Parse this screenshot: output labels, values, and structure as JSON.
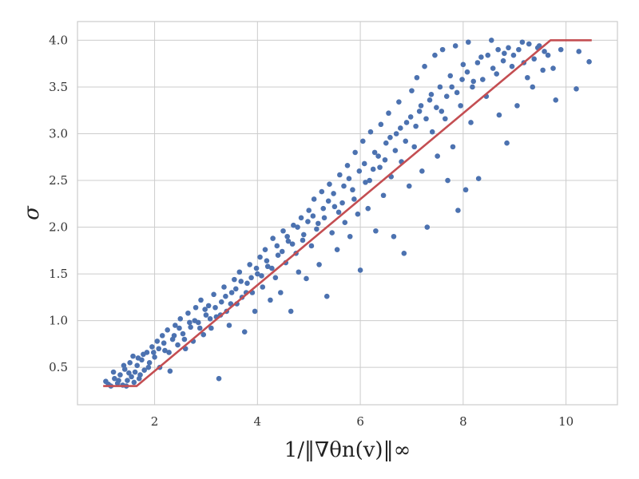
{
  "chart_data": {
    "type": "scatter",
    "xlabel": "1/‖∇θn(v)‖∞",
    "ylabel": "σ",
    "xlim": [
      0.5,
      11.0
    ],
    "ylim": [
      0.1,
      4.2
    ],
    "x_ticks": [
      2,
      4,
      6,
      8,
      10
    ],
    "y_ticks": [
      0.5,
      1.0,
      1.5,
      2.0,
      2.5,
      3.0,
      3.5,
      4.0
    ],
    "x_tick_labels": [
      "2",
      "4",
      "6",
      "8",
      "10"
    ],
    "y_tick_labels": [
      "0.5",
      "1.0",
      "1.5",
      "2.0",
      "2.5",
      "3.0",
      "3.5",
      "4.0"
    ],
    "grid": true,
    "colors": {
      "points": "#4c72b0",
      "fit": "#c44e52",
      "grid": "#cccccc",
      "frame": "#cccccc"
    },
    "series": [
      {
        "kind": "scatter",
        "points": [
          [
            1.05,
            0.35
          ],
          [
            1.15,
            0.3
          ],
          [
            1.22,
            0.38
          ],
          [
            1.28,
            0.33
          ],
          [
            1.33,
            0.42
          ],
          [
            1.38,
            0.31
          ],
          [
            1.42,
            0.48
          ],
          [
            1.47,
            0.36
          ],
          [
            1.52,
            0.55
          ],
          [
            1.55,
            0.4
          ],
          [
            1.58,
            0.62
          ],
          [
            1.62,
            0.45
          ],
          [
            1.66,
            0.52
          ],
          [
            1.7,
            0.38
          ],
          [
            1.75,
            0.58
          ],
          [
            1.8,
            0.47
          ],
          [
            1.85,
            0.66
          ],
          [
            1.9,
            0.55
          ],
          [
            1.95,
            0.72
          ],
          [
            2.0,
            0.61
          ],
          [
            2.05,
            0.78
          ],
          [
            2.1,
            0.5
          ],
          [
            2.15,
            0.84
          ],
          [
            2.2,
            0.68
          ],
          [
            2.25,
            0.9
          ],
          [
            2.3,
            0.46
          ],
          [
            2.35,
            0.8
          ],
          [
            2.4,
            0.95
          ],
          [
            2.45,
            0.74
          ],
          [
            2.5,
            1.02
          ],
          [
            2.55,
            0.86
          ],
          [
            2.6,
            0.7
          ],
          [
            2.65,
            1.08
          ],
          [
            2.7,
            0.93
          ],
          [
            2.75,
            0.78
          ],
          [
            2.8,
            1.14
          ],
          [
            2.85,
            0.98
          ],
          [
            2.9,
            1.22
          ],
          [
            2.95,
            0.85
          ],
          [
            3.0,
            1.06
          ],
          [
            3.05,
            1.16
          ],
          [
            3.1,
            0.92
          ],
          [
            3.15,
            1.28
          ],
          [
            3.2,
            1.04
          ],
          [
            3.25,
            0.38
          ],
          [
            3.3,
            1.2
          ],
          [
            3.35,
            1.36
          ],
          [
            3.4,
            1.1
          ],
          [
            3.45,
            0.95
          ],
          [
            3.5,
            1.3
          ],
          [
            3.55,
            1.44
          ],
          [
            3.6,
            1.18
          ],
          [
            3.65,
            1.52
          ],
          [
            3.7,
            1.25
          ],
          [
            3.75,
            0.88
          ],
          [
            3.8,
            1.4
          ],
          [
            3.85,
            1.6
          ],
          [
            3.9,
            1.3
          ],
          [
            3.95,
            1.1
          ],
          [
            4.0,
            1.5
          ],
          [
            4.05,
            1.68
          ],
          [
            4.1,
            1.36
          ],
          [
            4.15,
            1.76
          ],
          [
            4.2,
            1.58
          ],
          [
            4.25,
            1.22
          ],
          [
            4.3,
            1.88
          ],
          [
            4.35,
            1.46
          ],
          [
            4.4,
            1.7
          ],
          [
            4.45,
            1.3
          ],
          [
            4.5,
            1.96
          ],
          [
            4.55,
            1.62
          ],
          [
            4.6,
            1.85
          ],
          [
            4.65,
            1.1
          ],
          [
            4.7,
            2.02
          ],
          [
            4.75,
            1.72
          ],
          [
            4.8,
            1.52
          ],
          [
            4.85,
            2.1
          ],
          [
            4.9,
            1.92
          ],
          [
            4.95,
            1.45
          ],
          [
            5.0,
            2.18
          ],
          [
            5.05,
            1.8
          ],
          [
            5.1,
            2.3
          ],
          [
            5.15,
            1.98
          ],
          [
            5.2,
            1.6
          ],
          [
            5.25,
            2.38
          ],
          [
            5.3,
            2.1
          ],
          [
            5.35,
            1.26
          ],
          [
            5.4,
            2.46
          ],
          [
            5.45,
            1.94
          ],
          [
            5.5,
            2.22
          ],
          [
            5.55,
            1.76
          ],
          [
            5.6,
            2.56
          ],
          [
            5.65,
            2.26
          ],
          [
            5.7,
            2.05
          ],
          [
            5.75,
            2.66
          ],
          [
            5.8,
            1.9
          ],
          [
            5.85,
            2.4
          ],
          [
            5.9,
            2.8
          ],
          [
            5.95,
            2.14
          ],
          [
            6.0,
            1.54
          ],
          [
            6.05,
            2.92
          ],
          [
            6.1,
            2.48
          ],
          [
            6.15,
            2.2
          ],
          [
            6.2,
            3.02
          ],
          [
            6.25,
            2.62
          ],
          [
            6.3,
            1.96
          ],
          [
            6.35,
            2.76
          ],
          [
            6.4,
            3.1
          ],
          [
            6.45,
            2.34
          ],
          [
            6.5,
            2.9
          ],
          [
            6.55,
            3.22
          ],
          [
            6.6,
            2.54
          ],
          [
            6.65,
            1.9
          ],
          [
            6.7,
            3.0
          ],
          [
            6.75,
            3.34
          ],
          [
            6.8,
            2.7
          ],
          [
            6.85,
            1.72
          ],
          [
            6.9,
            3.12
          ],
          [
            6.95,
            2.44
          ],
          [
            7.0,
            3.46
          ],
          [
            7.05,
            2.86
          ],
          [
            7.1,
            3.6
          ],
          [
            7.15,
            3.24
          ],
          [
            7.2,
            2.6
          ],
          [
            7.25,
            3.72
          ],
          [
            7.3,
            2.0
          ],
          [
            7.35,
            3.36
          ],
          [
            7.4,
            3.02
          ],
          [
            7.45,
            3.84
          ],
          [
            7.5,
            2.76
          ],
          [
            7.55,
            3.5
          ],
          [
            7.6,
            3.9
          ],
          [
            7.65,
            3.16
          ],
          [
            7.7,
            2.5
          ],
          [
            7.75,
            3.62
          ],
          [
            7.8,
            2.86
          ],
          [
            7.85,
            3.94
          ],
          [
            7.9,
            2.18
          ],
          [
            7.95,
            3.3
          ],
          [
            8.0,
            3.74
          ],
          [
            8.05,
            2.4
          ],
          [
            8.1,
            3.98
          ],
          [
            8.15,
            3.12
          ],
          [
            8.2,
            3.56
          ],
          [
            8.3,
            2.52
          ],
          [
            8.35,
            3.82
          ],
          [
            8.45,
            3.4
          ],
          [
            8.55,
            4.0
          ],
          [
            8.65,
            3.64
          ],
          [
            8.7,
            3.2
          ],
          [
            8.8,
            3.86
          ],
          [
            8.85,
            2.9
          ],
          [
            8.95,
            3.72
          ],
          [
            9.05,
            3.3
          ],
          [
            9.15,
            3.98
          ],
          [
            9.25,
            3.6
          ],
          [
            9.35,
            3.5
          ],
          [
            9.45,
            3.92
          ],
          [
            9.55,
            3.68
          ],
          [
            9.65,
            3.84
          ],
          [
            9.75,
            3.7
          ],
          [
            9.8,
            3.36
          ],
          [
            9.9,
            3.9
          ],
          [
            10.2,
            3.48
          ],
          [
            10.25,
            3.88
          ],
          [
            10.45,
            3.77
          ],
          [
            1.1,
            0.32
          ],
          [
            1.2,
            0.45
          ],
          [
            1.3,
            0.36
          ],
          [
            1.4,
            0.52
          ],
          [
            1.45,
            0.3
          ],
          [
            1.5,
            0.44
          ],
          [
            1.6,
            0.34
          ],
          [
            1.68,
            0.6
          ],
          [
            1.72,
            0.42
          ],
          [
            1.78,
            0.64
          ],
          [
            1.88,
            0.5
          ],
          [
            1.98,
            0.66
          ],
          [
            2.08,
            0.7
          ],
          [
            2.18,
            0.76
          ],
          [
            2.28,
            0.66
          ],
          [
            2.38,
            0.84
          ],
          [
            2.48,
            0.92
          ],
          [
            2.58,
            0.8
          ],
          [
            2.68,
            0.98
          ],
          [
            2.78,
            1.0
          ],
          [
            2.88,
            0.92
          ],
          [
            2.98,
            1.12
          ],
          [
            3.08,
            1.02
          ],
          [
            3.18,
            1.14
          ],
          [
            3.28,
            1.06
          ],
          [
            3.38,
            1.26
          ],
          [
            3.48,
            1.18
          ],
          [
            3.58,
            1.34
          ],
          [
            3.68,
            1.42
          ],
          [
            3.78,
            1.3
          ],
          [
            3.88,
            1.46
          ],
          [
            3.98,
            1.56
          ],
          [
            4.08,
            1.48
          ],
          [
            4.18,
            1.64
          ],
          [
            4.28,
            1.56
          ],
          [
            4.38,
            1.8
          ],
          [
            4.48,
            1.74
          ],
          [
            4.58,
            1.9
          ],
          [
            4.68,
            1.82
          ],
          [
            4.78,
            2.0
          ],
          [
            4.88,
            1.86
          ],
          [
            4.98,
            2.06
          ],
          [
            5.08,
            2.12
          ],
          [
            5.18,
            2.04
          ],
          [
            5.28,
            2.2
          ],
          [
            5.38,
            2.28
          ],
          [
            5.48,
            2.36
          ],
          [
            5.58,
            2.16
          ],
          [
            5.68,
            2.44
          ],
          [
            5.78,
            2.52
          ],
          [
            5.88,
            2.3
          ],
          [
            5.98,
            2.6
          ],
          [
            6.08,
            2.68
          ],
          [
            6.18,
            2.5
          ],
          [
            6.28,
            2.8
          ],
          [
            6.38,
            2.64
          ],
          [
            6.48,
            2.72
          ],
          [
            6.58,
            2.96
          ],
          [
            6.68,
            2.82
          ],
          [
            6.78,
            3.06
          ],
          [
            6.88,
            2.92
          ],
          [
            6.98,
            3.18
          ],
          [
            7.08,
            3.08
          ],
          [
            7.18,
            3.3
          ],
          [
            7.28,
            3.16
          ],
          [
            7.38,
            3.42
          ],
          [
            7.48,
            3.28
          ],
          [
            7.58,
            3.24
          ],
          [
            7.68,
            3.4
          ],
          [
            7.78,
            3.5
          ],
          [
            7.88,
            3.44
          ],
          [
            7.98,
            3.58
          ],
          [
            8.08,
            3.66
          ],
          [
            8.18,
            3.5
          ],
          [
            8.28,
            3.76
          ],
          [
            8.38,
            3.58
          ],
          [
            8.48,
            3.84
          ],
          [
            8.58,
            3.7
          ],
          [
            8.68,
            3.9
          ],
          [
            8.78,
            3.78
          ],
          [
            8.88,
            3.92
          ],
          [
            8.98,
            3.84
          ],
          [
            9.08,
            3.9
          ],
          [
            9.18,
            3.76
          ],
          [
            9.28,
            3.96
          ],
          [
            9.38,
            3.8
          ],
          [
            9.48,
            3.94
          ],
          [
            9.58,
            3.88
          ]
        ]
      },
      {
        "kind": "line",
        "points": [
          [
            1.0,
            0.3
          ],
          [
            1.65,
            0.3
          ],
          [
            9.7,
            4.0
          ],
          [
            10.5,
            4.0
          ]
        ]
      }
    ]
  }
}
